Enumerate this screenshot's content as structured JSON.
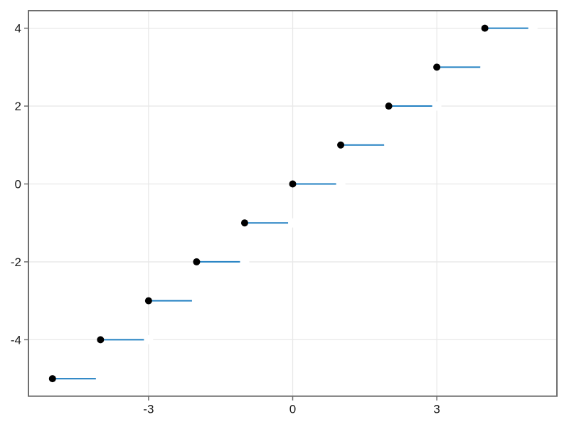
{
  "chart_data": {
    "type": "line",
    "subtype": "step-floor-function",
    "title": "",
    "xlabel": "",
    "ylabel": "",
    "grid": true,
    "legend": "none",
    "xlim": [
      -5.5,
      5.5
    ],
    "ylim": [
      -5.45,
      4.45
    ],
    "x_ticks": [
      -3,
      0,
      3
    ],
    "x_tick_labels": [
      "-3",
      "0",
      "3"
    ],
    "y_ticks": [
      -4,
      -2,
      0,
      2,
      4
    ],
    "y_tick_labels": [
      "-4",
      "-2",
      "0",
      "2",
      "4"
    ],
    "series": [
      {
        "name": "floor-step-series",
        "line_color": "#2280c2",
        "line_width": 2,
        "closed_marker_color": "#000000",
        "open_marker_color": "#ffffff",
        "segments": [
          {
            "y": -5,
            "x_start": -5,
            "x_end": -4,
            "closed_at": -5,
            "open_at": -4
          },
          {
            "y": -4,
            "x_start": -4,
            "x_end": -3,
            "closed_at": -4,
            "open_at": -3
          },
          {
            "y": -3,
            "x_start": -3,
            "x_end": -2,
            "closed_at": -3,
            "open_at": -2
          },
          {
            "y": -2,
            "x_start": -2,
            "x_end": -1,
            "closed_at": -2,
            "open_at": -1
          },
          {
            "y": -1,
            "x_start": -1,
            "x_end": 0,
            "closed_at": -1,
            "open_at": 0
          },
          {
            "y": 0,
            "x_start": 0,
            "x_end": 1,
            "closed_at": 0,
            "open_at": 1
          },
          {
            "y": 1,
            "x_start": 1,
            "x_end": 2,
            "closed_at": 1,
            "open_at": 2
          },
          {
            "y": 2,
            "x_start": 2,
            "x_end": 3,
            "closed_at": 2,
            "open_at": 3
          },
          {
            "y": 3,
            "x_start": 3,
            "x_end": 4,
            "closed_at": 3,
            "open_at": 4
          },
          {
            "y": 4,
            "x_start": 4,
            "x_end": 5,
            "closed_at": 4,
            "open_at": 5
          }
        ]
      }
    ],
    "colors": {
      "background": "#ffffff",
      "gridline": "#e8e8e8",
      "spine": "#6e6e6e",
      "tick": "#6e6e6e",
      "tick_label": "#1a1a1a"
    }
  }
}
